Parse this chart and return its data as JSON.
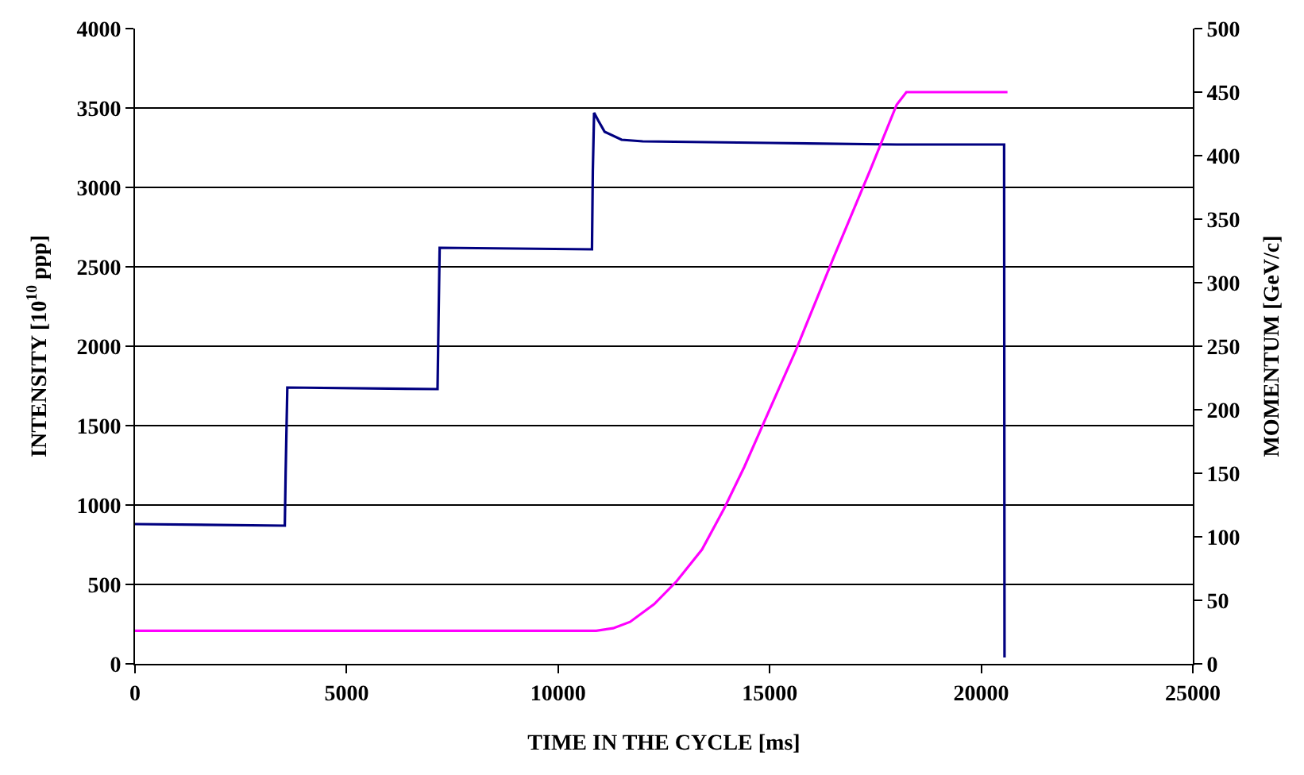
{
  "chart_data": {
    "type": "line",
    "xlabel": "TIME IN THE CYCLE [ms]",
    "ylabel": "INTENSITY [10$^{10}$ ppp]",
    "y2label": "MOMENTUM [GeV/c]",
    "xlim": [
      0,
      25000
    ],
    "xticks": [
      0,
      5000,
      10000,
      15000,
      20000,
      25000
    ],
    "ylim": [
      0,
      4000
    ],
    "yticks": [
      0,
      500,
      1000,
      1500,
      2000,
      2500,
      3000,
      3500,
      4000
    ],
    "y2lim": [
      0,
      500
    ],
    "y2ticks": [
      0,
      50,
      100,
      150,
      200,
      250,
      300,
      350,
      400,
      450,
      500
    ],
    "grid": "y",
    "marker": "none",
    "line_style": "solid",
    "series": [
      {
        "color": "#000080",
        "x": [
          0,
          3540,
          3560,
          3600,
          7150,
          7170,
          7200,
          10800,
          10820,
          10850,
          10950,
          11100,
          11500,
          12000,
          15000,
          18000,
          20540,
          20550
        ],
        "values": [
          880,
          870,
          1200,
          1740,
          1730,
          2100,
          2620,
          2610,
          3100,
          3470,
          3420,
          3350,
          3300,
          3290,
          3280,
          3270,
          3270,
          40
        ]
      },
      {
        "color": "#ff00ff",
        "axis": "y2",
        "x": [
          0,
          10900,
          11300,
          11700,
          12270,
          12800,
          13400,
          13920,
          14400,
          14850,
          15620,
          16500,
          17380,
          18000,
          18230,
          20620
        ],
        "values": [
          26,
          26,
          28,
          33,
          47,
          65,
          90,
          122,
          155,
          189,
          247,
          319,
          389,
          440,
          450,
          450
        ]
      }
    ]
  }
}
